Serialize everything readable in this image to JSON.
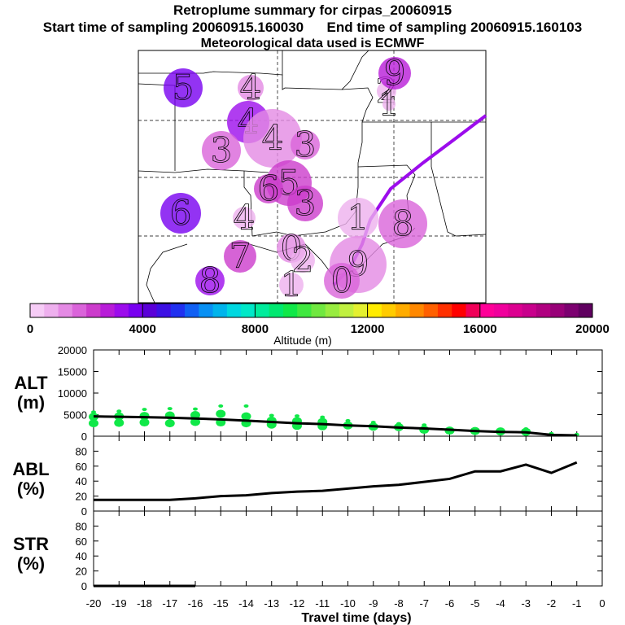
{
  "header": {
    "title": "Retroplume summary for cirpas_20060915",
    "start_label": "Start time of sampling 20060915.160030",
    "end_label": "End time of sampling 20060915.160103",
    "met_label": "Meteorological data used is ECMWF"
  },
  "colorbar": {
    "title": "Altitude (m)",
    "ticks": [
      "0",
      "4000",
      "8000",
      "12000",
      "16000",
      "20000"
    ],
    "colors": [
      "#f6ccf6",
      "#eeb0ee",
      "#e48ae4",
      "#da64da",
      "#cc3ccc",
      "#b81cd8",
      "#9c0cec",
      "#7800f0",
      "#5a00d8",
      "#3c10e4",
      "#2030f0",
      "#1060f4",
      "#0890f4",
      "#00b4ec",
      "#00d8e0",
      "#00e8c8",
      "#00ec9c",
      "#00e870",
      "#10e848",
      "#40e840",
      "#70e840",
      "#98ec40",
      "#c0f040",
      "#e4f030",
      "#ffec00",
      "#ffcc00",
      "#ffac00",
      "#ff8800",
      "#ff6000",
      "#ff3000",
      "#ff0000",
      "#f00058",
      "#ff0098",
      "#f0009c",
      "#dc0090",
      "#c8008c",
      "#b00080",
      "#980078",
      "#7c0070",
      "#600060"
    ]
  },
  "map": {
    "clusters": [
      {
        "label": "5",
        "alt": 3500
      },
      {
        "label": "4",
        "alt": 1200
      },
      {
        "label": "4",
        "alt": 3200
      },
      {
        "label": "4",
        "alt": 1400
      },
      {
        "label": "3",
        "alt": 1500
      },
      {
        "label": "3",
        "alt": 1800
      },
      {
        "label": "5",
        "alt": 2300
      },
      {
        "label": "6",
        "alt": 3600
      },
      {
        "label": "4",
        "alt": 800
      },
      {
        "label": "3",
        "alt": 2200
      },
      {
        "label": "6",
        "alt": 2000
      },
      {
        "label": "1",
        "alt": 900
      },
      {
        "label": "8",
        "alt": 1800
      },
      {
        "label": "0",
        "alt": 1300
      },
      {
        "label": "9",
        "alt": 1100
      },
      {
        "label": "8",
        "alt": 3300
      },
      {
        "label": "7",
        "alt": 2100
      },
      {
        "label": "2",
        "alt": 600
      },
      {
        "label": "1",
        "alt": 700
      },
      {
        "label": "0",
        "alt": 1500
      },
      {
        "label": "2",
        "alt": 500
      },
      {
        "label": "1",
        "alt": 800
      },
      {
        "label": "9",
        "alt": 2800
      }
    ]
  },
  "chart_data": [
    {
      "type": "scatter",
      "name": "ALT",
      "ylabel_line1": "ALT",
      "ylabel_line2": "(m)",
      "ylim": [
        0,
        20000
      ],
      "yticks": [
        "0",
        "5000",
        "10000",
        "15000",
        "20000"
      ],
      "x": [
        -20,
        -19,
        -18,
        -17,
        -16,
        -15,
        -14,
        -13,
        -12,
        -11,
        -10,
        -9,
        -8,
        -7,
        -6,
        -5,
        -4,
        -3,
        -2,
        -1
      ],
      "points": [
        {
          "x": -20,
          "values": [
            5600,
            4500,
            3000
          ]
        },
        {
          "x": -19,
          "values": [
            5800,
            4600,
            3100
          ]
        },
        {
          "x": -18,
          "values": [
            6200,
            4700,
            3200
          ]
        },
        {
          "x": -17,
          "values": [
            6400,
            4800,
            3000
          ]
        },
        {
          "x": -16,
          "values": [
            6300,
            4900,
            3300
          ]
        },
        {
          "x": -15,
          "values": [
            7000,
            5200,
            3200
          ]
        },
        {
          "x": -14,
          "values": [
            7000,
            4600,
            3000
          ]
        },
        {
          "x": -13,
          "values": [
            4800,
            3600,
            2700
          ]
        },
        {
          "x": -12,
          "values": [
            4700,
            3500,
            2400
          ]
        },
        {
          "x": -11,
          "values": [
            4400,
            3300,
            2300
          ]
        },
        {
          "x": -10,
          "values": [
            3600,
            2500
          ]
        },
        {
          "x": -9,
          "values": [
            3200,
            2200
          ]
        },
        {
          "x": -8,
          "values": [
            2900,
            2100
          ]
        },
        {
          "x": -7,
          "values": [
            2600,
            1500
          ]
        },
        {
          "x": -6,
          "values": [
            1800,
            1300
          ]
        },
        {
          "x": -5,
          "values": [
            1700,
            1200
          ]
        },
        {
          "x": -4,
          "values": [
            1600,
            1100
          ]
        },
        {
          "x": -3,
          "values": [
            1700,
            1000
          ]
        },
        {
          "x": -2,
          "values": [
            600
          ]
        },
        {
          "x": -1,
          "values": [
            400
          ]
        }
      ],
      "mean_line": [
        4600,
        4500,
        4400,
        4300,
        4100,
        3900,
        3600,
        3300,
        3000,
        2800,
        2500,
        2300,
        2000,
        1800,
        1500,
        1200,
        1000,
        900,
        300,
        200
      ]
    },
    {
      "type": "line",
      "name": "ABL",
      "ylabel_line1": "ABL",
      "ylabel_line2": "(%)",
      "ylim": [
        0,
        100
      ],
      "yticks": [
        "0",
        "20",
        "40",
        "60",
        "80"
      ],
      "x": [
        -20,
        -19,
        -18,
        -17,
        -16,
        -15,
        -14,
        -13,
        -12,
        -11,
        -10,
        -9,
        -8,
        -7,
        -6,
        -5,
        -4,
        -3,
        -2,
        -1
      ],
      "values": [
        15,
        15,
        15,
        15,
        17,
        20,
        21,
        24,
        26,
        27,
        30,
        33,
        35,
        39,
        43,
        53,
        53,
        62,
        51,
        65
      ]
    },
    {
      "type": "line",
      "name": "STR",
      "ylabel_line1": "STR",
      "ylabel_line2": "(%)",
      "ylim": [
        0,
        100
      ],
      "yticks": [
        "0",
        "20",
        "40",
        "60",
        "80"
      ],
      "x": [
        -20,
        -19,
        -18,
        -17,
        -16,
        -15,
        -14,
        -13,
        -12,
        -11,
        -10,
        -9,
        -8,
        -7,
        -6,
        -5,
        -4,
        -3,
        -2,
        -1
      ],
      "values": [
        0,
        0,
        0,
        0,
        0,
        null,
        null,
        null,
        null,
        null,
        null,
        null,
        null,
        null,
        null,
        null,
        null,
        null,
        null,
        null
      ]
    }
  ],
  "xaxis": {
    "label": "Travel time (days)",
    "ticks": [
      "-20",
      "-19",
      "-18",
      "-17",
      "-16",
      "-15",
      "-14",
      "-13",
      "-12",
      "-11",
      "-10",
      "-9",
      "-8",
      "-7",
      "-6",
      "-5",
      "-4",
      "-3",
      "-2",
      "-1",
      "0"
    ]
  }
}
